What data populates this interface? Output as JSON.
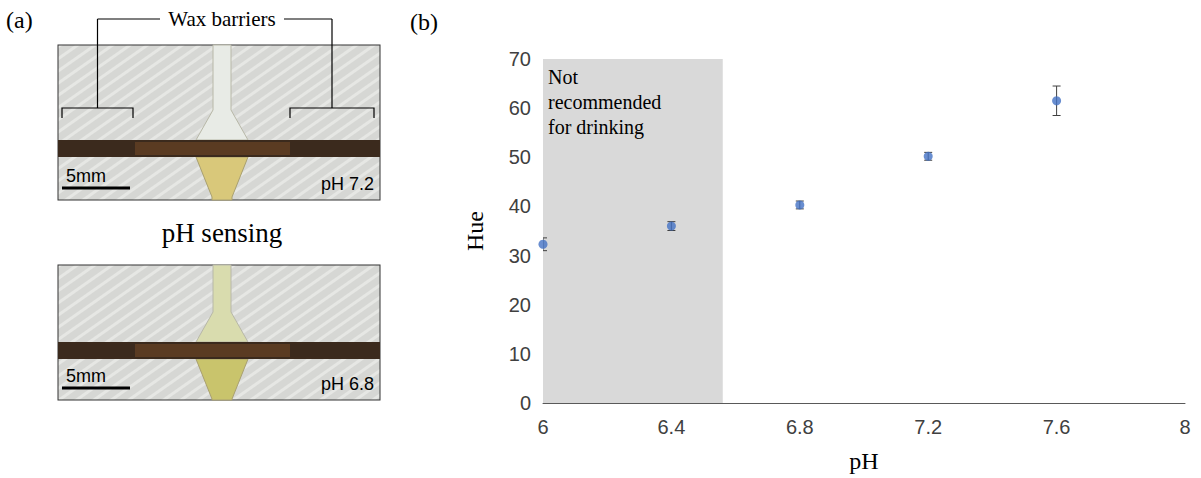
{
  "panel_labels": [
    "(a)",
    "(b)"
  ],
  "panel_a": {
    "bracket_label": "Wax barriers",
    "center_label": "pH sensing",
    "images": [
      {
        "scale_bar": "5mm",
        "label": "pH 7.2"
      },
      {
        "scale_bar": "5mm",
        "label": "pH 6.8"
      }
    ]
  },
  "chart_data": {
    "type": "scatter",
    "x": [
      6,
      6.4,
      6.8,
      7.2,
      7.6
    ],
    "values": [
      32.3,
      36.0,
      40.3,
      50.2,
      61.5
    ],
    "errors": [
      1.3,
      0.9,
      0.8,
      0.8,
      3.0
    ],
    "color": "#4472c4",
    "marker": "circle",
    "xlabel": "pH",
    "ylabel": "Hue",
    "xlim": [
      6,
      8
    ],
    "xticks": [
      6,
      6.4,
      6.8,
      7.2,
      7.6,
      8
    ],
    "ylim": [
      0,
      70
    ],
    "yticks": [
      0,
      10,
      20,
      30,
      40,
      50,
      60,
      70
    ],
    "grid": false,
    "annotation": {
      "text": "Not recommended for drinking",
      "x_from": 6,
      "x_to": 6.56
    }
  }
}
